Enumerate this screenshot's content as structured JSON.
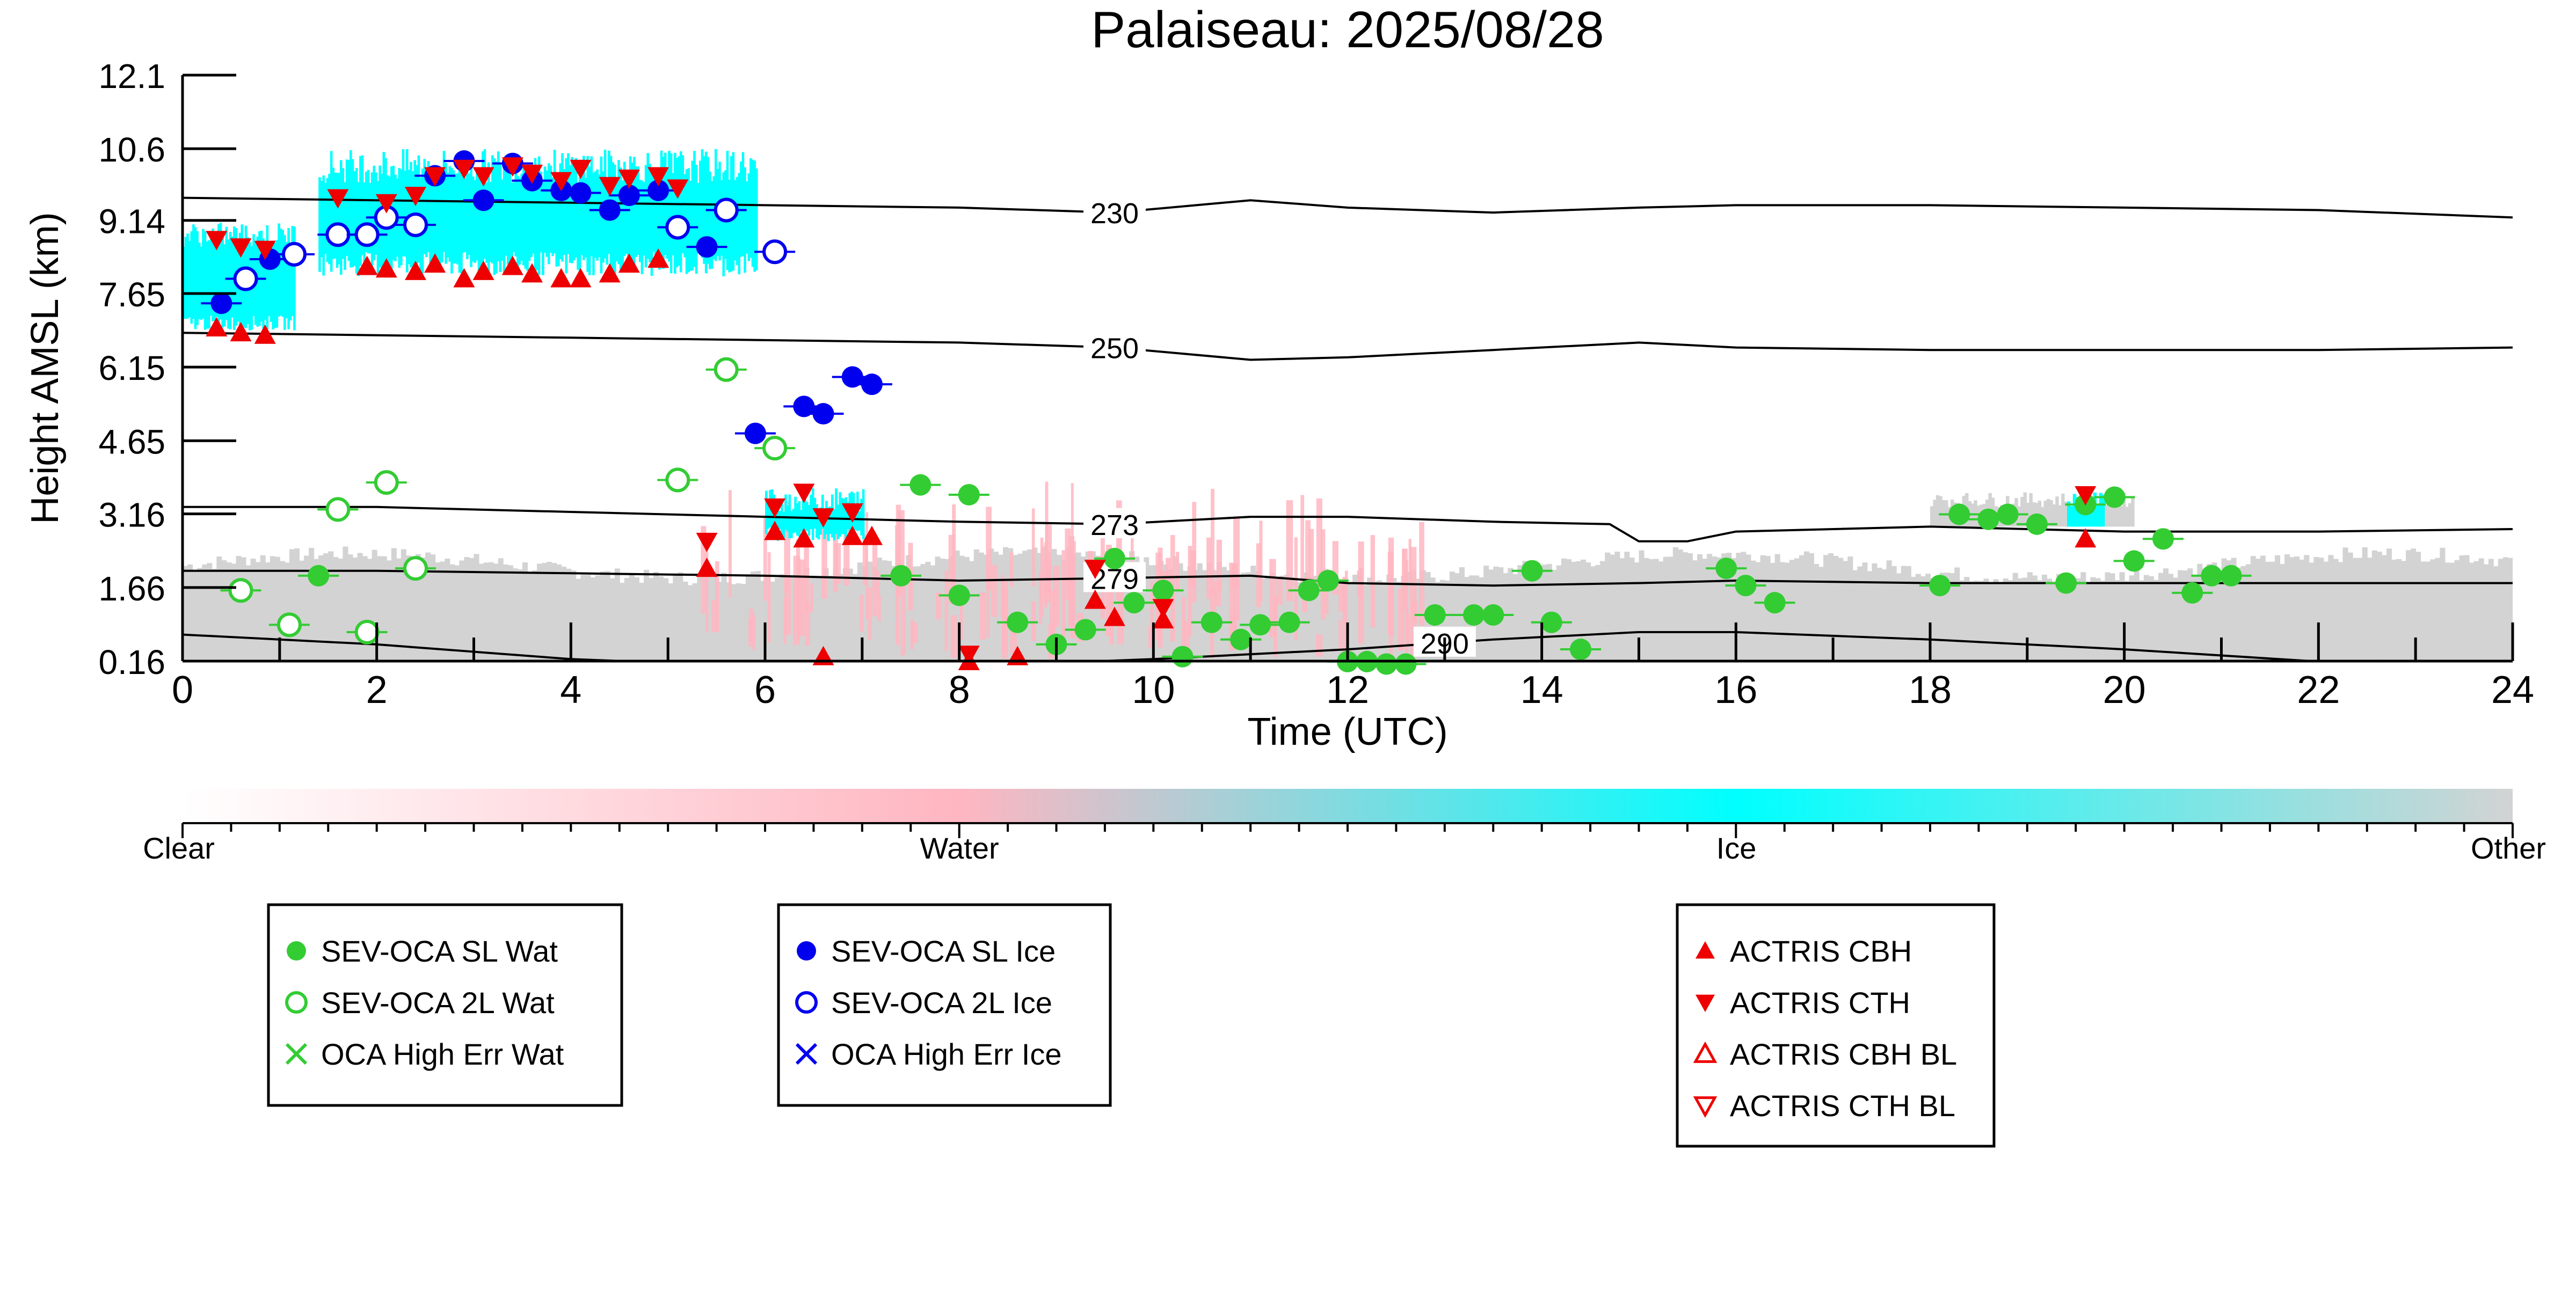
{
  "chart_data": {
    "type": "scatter",
    "title": "Palaiseau: 2025/08/28",
    "xlabel": "Time (UTC)",
    "ylabel": "Height AMSL (km)",
    "xlim": [
      0,
      24
    ],
    "ylim": [
      0.16,
      12.1
    ],
    "x_ticks": [
      "0",
      "2",
      "4",
      "6",
      "8",
      "10",
      "12",
      "14",
      "16",
      "18",
      "20",
      "22",
      "24"
    ],
    "y_ticks": [
      "0.16",
      "1.66",
      "3.16",
      "4.65",
      "6.15",
      "7.65",
      "9.14",
      "10.6",
      "12.1"
    ],
    "y_tick_values": [
      0.16,
      1.66,
      3.16,
      4.65,
      6.15,
      7.65,
      9.14,
      10.6,
      12.1
    ],
    "colors": {
      "water": "#33cc33",
      "ice": "#0000ee",
      "actris": "#ee0000",
      "mask_ice": "#00ffff",
      "mask_water": "#ffb6c1",
      "mask_other": "#d3d3d3"
    },
    "colorbar": {
      "labels": [
        "Clear",
        "Water",
        "Ice",
        "Other"
      ],
      "stops": [
        "#ffffff",
        "#ffb6c1",
        "#00ffff",
        "#d3d3d3"
      ]
    },
    "isotherms": [
      {
        "label": "230",
        "label_x": 9.6,
        "points": [
          [
            0,
            9.6
          ],
          [
            2,
            9.55
          ],
          [
            4,
            9.5
          ],
          [
            6,
            9.45
          ],
          [
            8,
            9.4
          ],
          [
            9.6,
            9.3
          ],
          [
            11,
            9.55
          ],
          [
            12,
            9.4
          ],
          [
            13.5,
            9.3
          ],
          [
            15,
            9.4
          ],
          [
            16,
            9.45
          ],
          [
            18,
            9.45
          ],
          [
            20,
            9.4
          ],
          [
            22,
            9.35
          ],
          [
            24,
            9.2
          ]
        ]
      },
      {
        "label": "250",
        "label_x": 9.6,
        "points": [
          [
            0,
            6.85
          ],
          [
            2,
            6.8
          ],
          [
            4,
            6.75
          ],
          [
            6,
            6.7
          ],
          [
            8,
            6.65
          ],
          [
            9.6,
            6.55
          ],
          [
            11,
            6.3
          ],
          [
            12,
            6.35
          ],
          [
            13.5,
            6.5
          ],
          [
            15,
            6.65
          ],
          [
            16,
            6.55
          ],
          [
            18,
            6.5
          ],
          [
            20,
            6.5
          ],
          [
            22,
            6.5
          ],
          [
            24,
            6.55
          ]
        ]
      },
      {
        "label": "273",
        "label_x": 9.6,
        "points": [
          [
            0,
            3.3
          ],
          [
            2,
            3.3
          ],
          [
            4,
            3.2
          ],
          [
            6,
            3.1
          ],
          [
            8,
            3.0
          ],
          [
            9.6,
            2.95
          ],
          [
            11,
            3.1
          ],
          [
            12,
            3.1
          ],
          [
            13.5,
            3.0
          ],
          [
            14.7,
            2.95
          ],
          [
            15,
            2.6
          ],
          [
            15.5,
            2.6
          ],
          [
            16,
            2.8
          ],
          [
            18,
            2.9
          ],
          [
            20,
            2.8
          ],
          [
            22,
            2.8
          ],
          [
            24,
            2.85
          ]
        ]
      },
      {
        "label": "279",
        "label_x": 9.6,
        "points": [
          [
            0,
            2.0
          ],
          [
            2,
            2.0
          ],
          [
            4,
            1.95
          ],
          [
            6,
            1.9
          ],
          [
            8,
            1.8
          ],
          [
            9.6,
            1.85
          ],
          [
            11,
            1.9
          ],
          [
            12,
            1.75
          ],
          [
            13.5,
            1.7
          ],
          [
            15,
            1.75
          ],
          [
            16,
            1.8
          ],
          [
            18,
            1.75
          ],
          [
            20,
            1.75
          ],
          [
            22,
            1.75
          ],
          [
            24,
            1.75
          ]
        ]
      },
      {
        "label": "290",
        "label_x": 13.0,
        "points": [
          [
            0,
            0.7
          ],
          [
            2,
            0.5
          ],
          [
            4,
            0.2
          ],
          [
            6,
            0.05
          ],
          [
            8,
            0.05
          ],
          [
            10,
            0.2
          ],
          [
            12,
            0.4
          ],
          [
            13.5,
            0.6
          ],
          [
            15,
            0.75
          ],
          [
            16,
            0.75
          ],
          [
            18,
            0.6
          ],
          [
            20,
            0.4
          ],
          [
            22,
            0.15
          ],
          [
            24,
            -0.1
          ]
        ]
      }
    ],
    "series": [
      {
        "name": "SEV-OCA SL Wat",
        "marker": "filled-circle",
        "color": "#33cc33",
        "x": [
          1.4,
          7.4,
          7.6,
          8.0,
          8.1,
          8.6,
          9.0,
          9.3,
          9.6,
          9.8,
          10.1,
          10.3,
          10.6,
          10.9,
          11.1,
          11.4,
          11.6,
          11.8,
          12.0,
          12.2,
          12.4,
          12.6,
          12.9,
          13.3,
          13.5,
          13.9,
          14.1,
          14.4,
          15.9,
          16.1,
          16.4,
          18.1,
          18.3,
          18.6,
          18.8,
          19.1,
          19.4,
          19.6,
          19.9,
          20.1,
          20.4,
          20.7,
          20.9,
          21.1
        ],
        "y": [
          1.9,
          1.9,
          3.75,
          1.5,
          3.55,
          0.95,
          0.5,
          0.8,
          2.25,
          1.35,
          1.6,
          0.25,
          0.95,
          0.6,
          0.9,
          0.95,
          1.6,
          1.8,
          0.15,
          0.15,
          0.1,
          0.1,
          1.1,
          1.1,
          1.1,
          2.0,
          0.95,
          0.4,
          2.05,
          1.7,
          1.35,
          1.7,
          3.15,
          3.05,
          3.15,
          2.95,
          1.75,
          3.35,
          3.5,
          2.2,
          2.65,
          1.55,
          1.9,
          1.9
        ]
      },
      {
        "name": "SEV-OCA 2L Wat",
        "marker": "open-circle",
        "color": "#33cc33",
        "x": [
          0.6,
          1.1,
          1.6,
          1.9,
          2.1,
          2.4,
          5.1,
          5.6,
          6.1
        ],
        "y": [
          1.6,
          0.9,
          3.25,
          0.75,
          3.8,
          2.05,
          3.85,
          6.1,
          4.5
        ]
      },
      {
        "name": "OCA High Err Wat",
        "marker": "x",
        "color": "#33cc33",
        "x": [],
        "y": []
      },
      {
        "name": "SEV-OCA SL Ice",
        "marker": "filled-circle",
        "color": "#0000ee",
        "x": [
          0.4,
          0.9,
          2.6,
          2.9,
          3.1,
          3.4,
          3.6,
          3.9,
          4.1,
          4.4,
          4.6,
          4.9,
          5.4,
          5.9,
          6.4,
          6.6,
          6.9,
          7.1
        ],
        "y": [
          7.45,
          8.35,
          10.05,
          10.35,
          9.55,
          10.3,
          9.95,
          9.75,
          9.7,
          9.35,
          9.65,
          9.75,
          8.6,
          4.8,
          5.35,
          5.2,
          5.95,
          5.8
        ]
      },
      {
        "name": "SEV-OCA 2L Ice",
        "marker": "open-circle",
        "color": "#0000ee",
        "x": [
          0.65,
          1.15,
          1.6,
          1.9,
          2.1,
          2.4,
          5.1,
          5.6,
          6.1
        ],
        "y": [
          7.95,
          8.45,
          8.85,
          8.85,
          9.2,
          9.05,
          9.0,
          9.35,
          8.5
        ]
      },
      {
        "name": "OCA High Err Ice",
        "marker": "x",
        "color": "#0000ee",
        "x": [],
        "y": []
      },
      {
        "name": "ACTRIS CBH",
        "marker": "triangle-up",
        "color": "#ee0000",
        "x": [
          0.35,
          0.6,
          0.85,
          1.9,
          2.1,
          2.4,
          2.6,
          2.9,
          3.1,
          3.4,
          3.6,
          3.9,
          4.1,
          4.4,
          4.6,
          4.9,
          5.4,
          6.1,
          6.4,
          6.6,
          6.9,
          7.1,
          8.1,
          8.6,
          9.4,
          9.6,
          10.1,
          19.6
        ],
        "y": [
          6.95,
          6.85,
          6.8,
          8.2,
          8.15,
          8.1,
          8.25,
          7.95,
          8.1,
          8.2,
          8.05,
          7.95,
          7.95,
          8.05,
          8.25,
          8.35,
          2.05,
          2.8,
          2.65,
          0.25,
          2.7,
          2.7,
          0.15,
          0.25,
          1.4,
          1.05,
          1.0,
          2.65
        ]
      },
      {
        "name": "ACTRIS CTH",
        "marker": "triangle-down",
        "color": "#ee0000",
        "x": [
          0.35,
          0.6,
          0.85,
          1.6,
          2.1,
          2.4,
          2.6,
          2.9,
          3.1,
          3.4,
          3.6,
          3.9,
          4.1,
          4.4,
          4.6,
          4.9,
          5.1,
          5.4,
          6.1,
          6.4,
          6.6,
          6.9,
          8.1,
          9.4,
          10.1,
          19.6
        ],
        "y": [
          8.75,
          8.6,
          8.55,
          9.6,
          9.5,
          9.65,
          10.05,
          10.2,
          10.05,
          10.25,
          10.1,
          9.95,
          10.2,
          9.85,
          10.0,
          10.05,
          9.8,
          2.6,
          3.3,
          3.6,
          3.1,
          3.2,
          0.3,
          2.05,
          1.25,
          3.55
        ]
      },
      {
        "name": "ACTRIS CBH BL",
        "marker": "open-triangle-up",
        "color": "#ee0000",
        "x": [],
        "y": []
      },
      {
        "name": "ACTRIS CTH BL",
        "marker": "open-triangle-down",
        "color": "#ee0000",
        "x": [],
        "y": []
      }
    ],
    "legends": [
      [
        "SEV-OCA SL Wat",
        "SEV-OCA 2L Wat",
        "OCA High Err Wat"
      ],
      [
        "SEV-OCA SL Ice",
        "SEV-OCA 2L Ice",
        "OCA High Err Ice"
      ],
      [
        "ACTRIS CBH",
        "ACTRIS CTH",
        "ACTRIS CBH BL",
        "ACTRIS CTH BL"
      ]
    ]
  }
}
